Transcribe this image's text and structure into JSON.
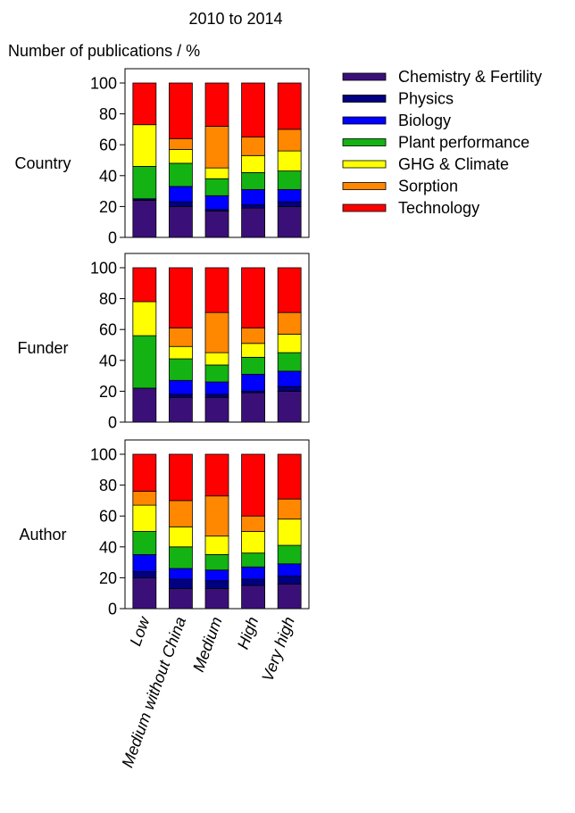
{
  "chart_data": {
    "type": "bar",
    "stacked": true,
    "title": "2010 to 2014",
    "ylabel": "Number of publications / %",
    "ylim": [
      0,
      100
    ],
    "yticks": [
      0,
      20,
      40,
      60,
      80,
      100
    ],
    "categories": [
      "Low",
      "Medium without China",
      "Medium",
      "High",
      "Very high"
    ],
    "legend_position": "top-right",
    "series_names": [
      "Chemistry & Fertility",
      "Physics",
      "Biology",
      "Plant performance",
      "GHG & Climate",
      "Sorption",
      "Technology"
    ],
    "colors": [
      "#3a1078",
      "#000080",
      "#0000ff",
      "#13b313",
      "#ffff00",
      "#ff8800",
      "#ff0000"
    ],
    "panels": [
      {
        "label": "Country",
        "series": [
          {
            "name": "Chemistry & Fertility",
            "values": [
              24,
              20,
              17,
              19,
              20
            ]
          },
          {
            "name": "Physics",
            "values": [
              1,
              3,
              1,
              2,
              3
            ]
          },
          {
            "name": "Biology",
            "values": [
              0,
              10,
              9,
              10,
              8
            ]
          },
          {
            "name": "Plant performance",
            "values": [
              21,
              15,
              11,
              11,
              12
            ]
          },
          {
            "name": "GHG & Climate",
            "values": [
              27,
              9,
              7,
              11,
              13
            ]
          },
          {
            "name": "Sorption",
            "values": [
              0,
              7,
              27,
              12,
              14
            ]
          },
          {
            "name": "Technology",
            "values": [
              27,
              36,
              28,
              35,
              30
            ]
          }
        ]
      },
      {
        "label": "Funder",
        "series": [
          {
            "name": "Chemistry & Fertility",
            "values": [
              22,
              16,
              16,
              19,
              20
            ]
          },
          {
            "name": "Physics",
            "values": [
              0,
              2,
              2,
              1,
              3
            ]
          },
          {
            "name": "Biology",
            "values": [
              0,
              9,
              8,
              11,
              10
            ]
          },
          {
            "name": "Plant performance",
            "values": [
              34,
              14,
              11,
              11,
              12
            ]
          },
          {
            "name": "GHG & Climate",
            "values": [
              22,
              8,
              8,
              9,
              12
            ]
          },
          {
            "name": "Sorption",
            "values": [
              0,
              12,
              26,
              10,
              14
            ]
          },
          {
            "name": "Technology",
            "values": [
              22,
              39,
              29,
              39,
              29
            ]
          }
        ]
      },
      {
        "label": "Author",
        "series": [
          {
            "name": "Chemistry & Fertility",
            "values": [
              20,
              13,
              13,
              15,
              16
            ]
          },
          {
            "name": "Physics",
            "values": [
              4,
              6,
              5,
              4,
              5
            ]
          },
          {
            "name": "Biology",
            "values": [
              11,
              7,
              7,
              8,
              8
            ]
          },
          {
            "name": "Plant performance",
            "values": [
              15,
              14,
              10,
              9,
              12
            ]
          },
          {
            "name": "GHG & Climate",
            "values": [
              17,
              13,
              12,
              14,
              17
            ]
          },
          {
            "name": "Sorption",
            "values": [
              9,
              17,
              26,
              10,
              13
            ]
          },
          {
            "name": "Technology",
            "values": [
              24,
              30,
              27,
              40,
              29
            ]
          }
        ]
      }
    ]
  }
}
